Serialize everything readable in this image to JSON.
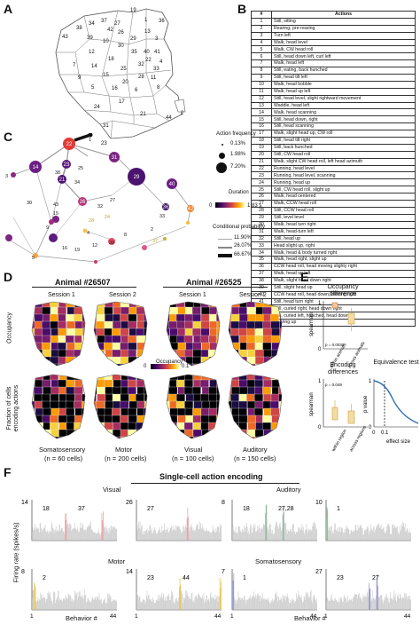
{
  "panels": {
    "a": "A",
    "b": "B",
    "c": "C",
    "d": "D",
    "e": "E",
    "f": "F"
  },
  "map_a": {
    "labels": [
      "19",
      "1",
      "37",
      "34",
      "27",
      "36",
      "38",
      "42",
      "26",
      "13",
      "3",
      "43",
      "39",
      "29",
      "10",
      "30",
      "12",
      "35",
      "40",
      "41",
      "18",
      "7",
      "14",
      "22",
      "32",
      "25",
      "33",
      "4",
      "15",
      "9",
      "28",
      "11",
      "20",
      "5",
      "16",
      "6",
      "8",
      "17",
      "24",
      "2",
      "44",
      "21",
      "31",
      "23"
    ]
  },
  "table_b": {
    "headers": [
      "#",
      "Actions"
    ],
    "rows": [
      [
        "1",
        "Still, sitting"
      ],
      [
        "2",
        "Rearing, pre-rearing"
      ],
      [
        "3",
        "Turn left"
      ],
      [
        "4",
        "Walk, head level"
      ],
      [
        "5",
        "Walk, CW head roll"
      ],
      [
        "6",
        "Still, head down left, curl left"
      ],
      [
        "7",
        "Walk, head left"
      ],
      [
        "8",
        "Still, eating, back hunched"
      ],
      [
        "9",
        "Still, head tilt left"
      ],
      [
        "10",
        "Walk, head bobble"
      ],
      [
        "11",
        "Walk, head up left"
      ],
      [
        "12",
        "Still, head level, slight rightward movement"
      ],
      [
        "13",
        "Waddle, head left"
      ],
      [
        "14",
        "Walk, head scanning"
      ],
      [
        "15",
        "Still, head down, right"
      ],
      [
        "16",
        "Still, head scanning"
      ],
      [
        "17",
        "Walk, slight head up, CW roll"
      ],
      [
        "18",
        "Still, head tilt right"
      ],
      [
        "19",
        "Still, back hunched"
      ],
      [
        "20",
        "Still, CW head roll"
      ],
      [
        "21",
        "Walk, slight CW head roll, left head azimuth"
      ],
      [
        "22",
        "Running, head level"
      ],
      [
        "23",
        "Running, head level, scanning"
      ],
      [
        "24",
        "Running, head up"
      ],
      [
        "25",
        "Still, CW head roll, slight up"
      ],
      [
        "26",
        "Walk, head centered"
      ],
      [
        "27",
        "Walk, CCW head roll"
      ],
      [
        "28",
        "Still, CCW head roll"
      ],
      [
        "29",
        "Still, level level"
      ],
      [
        "30",
        "Walk, head turn right"
      ],
      [
        "31",
        "Walk, head-turn left"
      ],
      [
        "32",
        "Still, head up"
      ],
      [
        "33",
        "Head slight up, right"
      ],
      [
        "34",
        "Walk, head & body turned right"
      ],
      [
        "35",
        "Walk, head right, slight up"
      ],
      [
        "36",
        "CCW head roll, head moving slighty right"
      ],
      [
        "37",
        "Walk, head up left"
      ],
      [
        "38",
        "Walk, slight head down right"
      ],
      [
        "39",
        "Still, slight head up"
      ],
      [
        "40",
        "CCW head roll, head down, moving right"
      ],
      [
        "41",
        "Still, head turn right"
      ],
      [
        "42",
        "Still, curled right, head down right"
      ],
      [
        "43",
        "Still, curled left, hunched, head down"
      ],
      [
        "44",
        "Rearing up"
      ]
    ]
  },
  "network_c": {
    "nodes": [
      "22",
      "1",
      "14",
      "3",
      "23",
      "31",
      "29",
      "40",
      "36",
      "21",
      "26",
      "28",
      "24",
      "42",
      "2",
      "37",
      "15",
      "9",
      "16",
      "39",
      "8",
      "5",
      "12",
      "19",
      "38",
      "34",
      "27",
      "43",
      "25",
      "30",
      "32",
      "33",
      "4"
    ],
    "legend": {
      "action_frequency": "Action frequency",
      "freq_values": [
        "0.13%",
        "1.98%",
        "7.20%"
      ],
      "duration": "Duration",
      "dur_min": "0",
      "dur_max": "1.83 s",
      "cond_prob": "Conditional probability",
      "prob_values": [
        "11.90%",
        "26.07%",
        "66.67%"
      ]
    }
  },
  "panel_d": {
    "animal1": "Animal #26507",
    "animal2": "Animal #26525",
    "sessions": [
      "Session 1",
      "Session 2",
      "Session 1",
      "Session 2"
    ],
    "row1_label": "Occupancy",
    "row2_label": "Fraction of cells encoding actions",
    "cbar_title": "Occupancy Fraction",
    "cbar_min": "0",
    "cbar_max": "0.1",
    "regions": [
      {
        "name": "Somatosensory",
        "n": "(n = 60 cells)"
      },
      {
        "name": "Motor",
        "n": "(n = 200 cells)"
      },
      {
        "name": "Visual",
        "n": "(n = 100 cells)"
      },
      {
        "name": "Auditory",
        "n": "(n = 150 cells)"
      }
    ]
  },
  "panel_e": {
    "occ_title": "Occupancy difference",
    "occ_ylabel": "spearman",
    "occ_y1": "1",
    "occ_y0": "0",
    "occ_p": "p = 0.0032",
    "occ_x": [
      "within animals",
      "across animals"
    ],
    "enc_title": "Encoding differences",
    "enc_ylabel": "spearman",
    "enc_y1": "1",
    "enc_y0": "0",
    "enc_p": "p = 0.049",
    "enc_x": [
      "within region",
      "across regions"
    ],
    "eq_title": "Equivalence test",
    "eq_ylabel": "p value",
    "eq_y1": "1",
    "eq_y0": "0",
    "eq_x0": "0",
    "eq_x1": "0.1",
    "eq_xlabel": "effect size"
  },
  "panel_f": {
    "title": "Single-cell action encoding",
    "ylabel": "Firing rate (spikes/s)",
    "xlabel": "Behavior #",
    "x_start": "1",
    "x_end": "44",
    "regions": [
      "Visual",
      "Auditory",
      "Motor",
      "Somatosensory"
    ],
    "plots": [
      {
        "ymax": "14",
        "peaks": [
          "18",
          "37"
        ]
      },
      {
        "ymax": "26",
        "peaks": [
          "27"
        ]
      },
      {
        "ymax": "8",
        "peaks": [
          "18",
          "27,28"
        ]
      },
      {
        "ymax": "10",
        "peaks": [
          "1"
        ]
      },
      {
        "ymax": "8",
        "peaks": [
          "2"
        ]
      },
      {
        "ymax": "14",
        "peaks": [
          "23",
          "44"
        ]
      },
      {
        "ymax": "7",
        "peaks": [
          "1"
        ]
      },
      {
        "ymax": "27",
        "peaks": [
          "23",
          "27"
        ]
      }
    ]
  },
  "colors": {
    "visual": "#e99aa0",
    "auditory": "#8fb59c",
    "motor": "#e6c24a",
    "somatosensory": "#8f93c9",
    "gray_bar": "#bdbdbd",
    "inferno_dark": "#1b0c41",
    "inferno_mid": "#b5367a",
    "inferno_light": "#fca50a",
    "equivalence": "#2f6fb0"
  }
}
